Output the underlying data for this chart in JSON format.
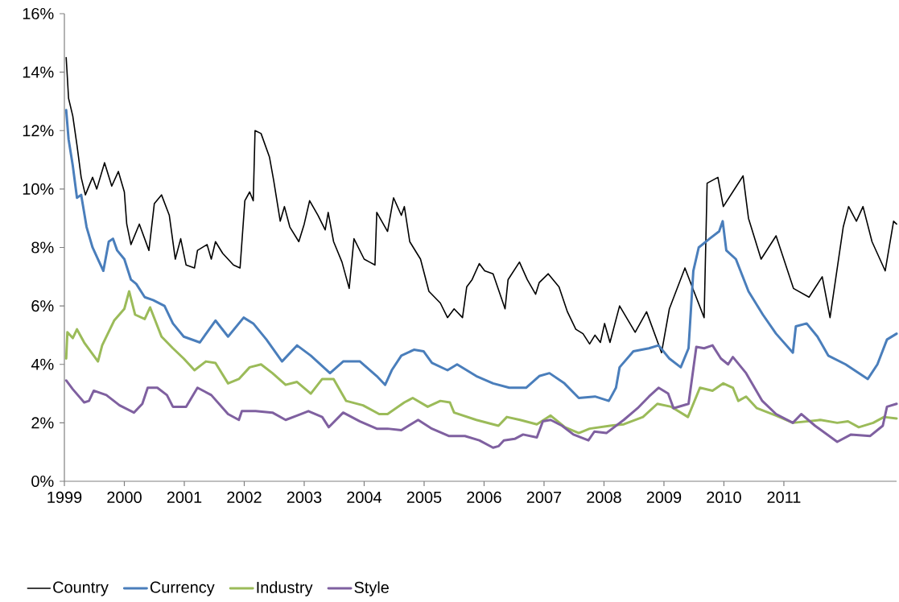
{
  "chart_data": {
    "type": "line",
    "legend": "bottom",
    "xlim": [
      1999,
      2012.88
    ],
    "xticks": [
      1999,
      2000,
      2001,
      2002,
      2003,
      2004,
      2005,
      2006,
      2007,
      2008,
      2009,
      2010,
      2011
    ],
    "ylim": [
      0,
      16
    ],
    "yticks": [
      {
        "value": 0,
        "label": "0%"
      },
      {
        "value": 2,
        "label": "2%"
      },
      {
        "value": 4,
        "label": "4%"
      },
      {
        "value": 6,
        "label": "6%"
      },
      {
        "value": 8,
        "label": "8%"
      },
      {
        "value": 10,
        "label": "10%"
      },
      {
        "value": 12,
        "label": "12%"
      },
      {
        "value": 14,
        "label": "14%"
      },
      {
        "value": 16,
        "label": "16%"
      }
    ],
    "series": [
      {
        "name": "Country",
        "color": "#000000",
        "x": [
          1999.03,
          1999.07,
          1999.14,
          1999.21,
          1999.28,
          1999.35,
          1999.47,
          1999.54,
          1999.67,
          1999.79,
          1999.9,
          2000.0,
          2000.04,
          2000.11,
          2000.25,
          2000.41,
          2000.5,
          2000.62,
          2000.75,
          2000.85,
          2000.94,
          2001.03,
          2001.17,
          2001.22,
          2001.38,
          2001.45,
          2001.52,
          2001.64,
          2001.82,
          2001.93,
          2002.01,
          2002.09,
          2002.15,
          2002.18,
          2002.28,
          2002.42,
          2002.49,
          2002.6,
          2002.67,
          2002.76,
          2002.91,
          2003.0,
          2003.09,
          2003.23,
          2003.35,
          2003.4,
          2003.49,
          2003.63,
          2003.75,
          2003.83,
          2004.0,
          2004.09,
          2004.18,
          2004.21,
          2004.39,
          2004.49,
          2004.62,
          2004.67,
          2004.76,
          2004.94,
          2005.08,
          2005.27,
          2005.39,
          2005.5,
          2005.64,
          2005.71,
          2005.8,
          2005.92,
          2006.01,
          2006.15,
          2006.35,
          2006.4,
          2006.59,
          2006.72,
          2006.86,
          2006.92,
          2007.07,
          2007.25,
          2007.39,
          2007.53,
          2007.65,
          2007.76,
          2007.85,
          2007.94,
          2008.01,
          2008.1,
          2008.26,
          2008.52,
          2008.71,
          2008.96,
          2009.09,
          2009.35,
          2009.48,
          2009.67,
          2009.72,
          2009.9,
          2009.99,
          2010.32,
          2010.41,
          2010.62,
          2010.87,
          2011.16,
          2011.42,
          2011.64,
          2011.77,
          2011.99,
          2012.08,
          2012.21,
          2012.32,
          2012.47,
          2012.69,
          2012.83,
          2012.88
        ],
        "values": [
          14.5,
          13.1,
          12.5,
          11.5,
          10.4,
          9.8,
          10.4,
          10.0,
          10.9,
          10.1,
          10.6,
          9.9,
          8.8,
          8.1,
          8.8,
          7.9,
          9.5,
          9.8,
          9.1,
          7.6,
          8.3,
          7.4,
          7.3,
          7.9,
          8.1,
          7.6,
          8.2,
          7.8,
          7.4,
          7.3,
          9.6,
          9.9,
          9.6,
          12.0,
          11.9,
          11.1,
          10.3,
          8.9,
          9.4,
          8.7,
          8.2,
          8.8,
          9.6,
          9.1,
          8.6,
          9.2,
          8.2,
          7.5,
          6.6,
          8.3,
          7.6,
          7.5,
          7.4,
          9.2,
          8.55,
          9.7,
          9.1,
          9.4,
          8.2,
          7.6,
          6.5,
          6.1,
          5.6,
          5.9,
          5.6,
          6.65,
          6.9,
          7.45,
          7.2,
          7.1,
          5.9,
          6.9,
          7.5,
          6.9,
          6.4,
          6.8,
          7.1,
          6.65,
          5.8,
          5.2,
          5.05,
          4.7,
          5.0,
          4.75,
          5.4,
          4.75,
          6.0,
          5.1,
          5.8,
          4.4,
          5.9,
          7.3,
          6.6,
          5.6,
          10.2,
          10.4,
          9.4,
          10.45,
          9.0,
          7.6,
          8.4,
          6.6,
          6.3,
          7.0,
          5.6,
          8.7,
          9.4,
          8.9,
          9.4,
          8.2,
          7.2,
          8.9,
          8.8
        ]
      },
      {
        "name": "Currency",
        "color": "#4a7ebb",
        "x": [
          1999.03,
          1999.07,
          1999.14,
          1999.21,
          1999.28,
          1999.37,
          1999.47,
          1999.56,
          1999.65,
          1999.74,
          1999.81,
          1999.88,
          2000.0,
          2000.11,
          2000.2,
          2000.34,
          2000.48,
          2000.67,
          2000.81,
          2000.99,
          2001.26,
          2001.38,
          2001.52,
          2001.73,
          2001.99,
          2002.15,
          2002.37,
          2002.63,
          2002.88,
          2003.11,
          2003.43,
          2003.65,
          2003.93,
          2004.21,
          2004.35,
          2004.46,
          2004.62,
          2004.83,
          2004.99,
          2005.13,
          2005.39,
          2005.55,
          2005.87,
          2006.15,
          2006.42,
          2006.7,
          2006.92,
          2007.09,
          2007.34,
          2007.58,
          2007.85,
          2008.08,
          2008.2,
          2008.26,
          2008.49,
          2008.75,
          2008.91,
          2009.09,
          2009.28,
          2009.41,
          2009.49,
          2009.58,
          2009.76,
          2009.92,
          2009.98,
          2010.04,
          2010.2,
          2010.41,
          2010.65,
          2010.87,
          2011.15,
          2011.2,
          2011.38,
          2011.56,
          2011.74,
          2012.03,
          2012.4,
          2012.56,
          2012.72,
          2012.88
        ],
        "values": [
          12.7,
          11.7,
          10.8,
          9.7,
          9.8,
          8.7,
          8.0,
          7.6,
          7.2,
          8.2,
          8.3,
          7.9,
          7.6,
          6.9,
          6.75,
          6.3,
          6.2,
          6.0,
          5.4,
          4.95,
          4.75,
          5.1,
          5.5,
          4.95,
          5.6,
          5.4,
          4.85,
          4.1,
          4.65,
          4.3,
          3.7,
          4.1,
          4.1,
          3.6,
          3.3,
          3.8,
          4.3,
          4.5,
          4.45,
          4.05,
          3.8,
          4.0,
          3.6,
          3.35,
          3.2,
          3.2,
          3.6,
          3.7,
          3.35,
          2.85,
          2.9,
          2.75,
          3.2,
          3.9,
          4.45,
          4.55,
          4.65,
          4.2,
          3.9,
          4.55,
          7.2,
          8.0,
          8.3,
          8.55,
          8.9,
          7.9,
          7.6,
          6.5,
          5.7,
          5.05,
          4.4,
          5.3,
          5.4,
          4.95,
          4.3,
          4.0,
          3.5,
          4.0,
          4.85,
          5.05
        ]
      },
      {
        "name": "Industry",
        "color": "#9bbb59",
        "x": [
          1999.03,
          1999.05,
          1999.14,
          1999.21,
          1999.33,
          1999.56,
          1999.63,
          1999.83,
          2000.0,
          2000.08,
          2000.18,
          2000.34,
          2000.43,
          2000.62,
          2000.81,
          2000.99,
          2001.17,
          2001.36,
          2001.52,
          2001.73,
          2001.91,
          2002.09,
          2002.28,
          2002.47,
          2002.69,
          2002.88,
          2003.11,
          2003.3,
          2003.49,
          2003.7,
          2003.98,
          2004.25,
          2004.39,
          2004.67,
          2004.81,
          2005.06,
          2005.27,
          2005.43,
          2005.5,
          2005.87,
          2006.24,
          2006.38,
          2006.6,
          2006.88,
          2007.11,
          2007.35,
          2007.58,
          2007.76,
          2008.1,
          2008.33,
          2008.65,
          2008.89,
          2009.12,
          2009.4,
          2009.6,
          2009.81,
          2009.99,
          2010.15,
          2010.24,
          2010.37,
          2010.55,
          2010.87,
          2011.15,
          2011.61,
          2011.89,
          2012.07,
          2012.25,
          2012.49,
          2012.67,
          2012.88
        ],
        "values": [
          4.2,
          5.1,
          4.9,
          5.2,
          4.75,
          4.1,
          4.65,
          5.5,
          5.9,
          6.5,
          5.7,
          5.55,
          5.95,
          4.95,
          4.55,
          4.2,
          3.8,
          4.1,
          4.05,
          3.35,
          3.5,
          3.9,
          4.0,
          3.7,
          3.3,
          3.4,
          3.0,
          3.5,
          3.5,
          2.75,
          2.6,
          2.3,
          2.3,
          2.7,
          2.85,
          2.55,
          2.75,
          2.7,
          2.35,
          2.1,
          1.9,
          2.2,
          2.1,
          1.95,
          2.25,
          1.85,
          1.65,
          1.8,
          1.9,
          1.95,
          2.2,
          2.65,
          2.55,
          2.2,
          3.2,
          3.1,
          3.35,
          3.2,
          2.75,
          2.9,
          2.5,
          2.25,
          2.0,
          2.1,
          2.0,
          2.05,
          1.85,
          2.0,
          2.2,
          2.15
        ]
      },
      {
        "name": "Style",
        "color": "#7f60a0",
        "x": [
          1999.03,
          1999.14,
          1999.33,
          1999.41,
          1999.49,
          1999.7,
          1999.92,
          2000.16,
          2000.3,
          2000.39,
          2000.55,
          2000.71,
          2000.81,
          2001.03,
          2001.22,
          2001.45,
          2001.73,
          2001.91,
          2001.96,
          2002.19,
          2002.47,
          2002.69,
          2002.88,
          2003.07,
          2003.3,
          2003.41,
          2003.65,
          2003.93,
          2004.21,
          2004.39,
          2004.62,
          2004.9,
          2005.13,
          2005.41,
          2005.68,
          2005.92,
          2006.15,
          2006.24,
          2006.33,
          2006.51,
          2006.65,
          2006.88,
          2006.98,
          2007.11,
          2007.3,
          2007.49,
          2007.74,
          2007.84,
          2008.04,
          2008.33,
          2008.56,
          2008.75,
          2008.91,
          2009.07,
          2009.16,
          2009.41,
          2009.54,
          2009.67,
          2009.81,
          2009.95,
          2010.07,
          2010.15,
          2010.37,
          2010.64,
          2010.87,
          2011.15,
          2011.29,
          2011.52,
          2011.89,
          2012.12,
          2012.44,
          2012.65,
          2012.72,
          2012.88
        ],
        "values": [
          3.45,
          3.15,
          2.7,
          2.75,
          3.1,
          2.95,
          2.6,
          2.35,
          2.65,
          3.2,
          3.2,
          2.95,
          2.55,
          2.55,
          3.2,
          2.95,
          2.3,
          2.1,
          2.4,
          2.4,
          2.35,
          2.1,
          2.25,
          2.4,
          2.2,
          1.85,
          2.35,
          2.05,
          1.8,
          1.8,
          1.75,
          2.1,
          1.8,
          1.55,
          1.55,
          1.4,
          1.15,
          1.2,
          1.4,
          1.45,
          1.6,
          1.5,
          2.05,
          2.1,
          1.9,
          1.6,
          1.4,
          1.7,
          1.65,
          2.1,
          2.5,
          2.9,
          3.2,
          3.0,
          2.5,
          2.65,
          4.6,
          4.55,
          4.65,
          4.2,
          4.0,
          4.25,
          3.7,
          2.75,
          2.3,
          2.0,
          2.3,
          1.9,
          1.35,
          1.6,
          1.55,
          1.9,
          2.55,
          2.65
        ]
      }
    ]
  }
}
